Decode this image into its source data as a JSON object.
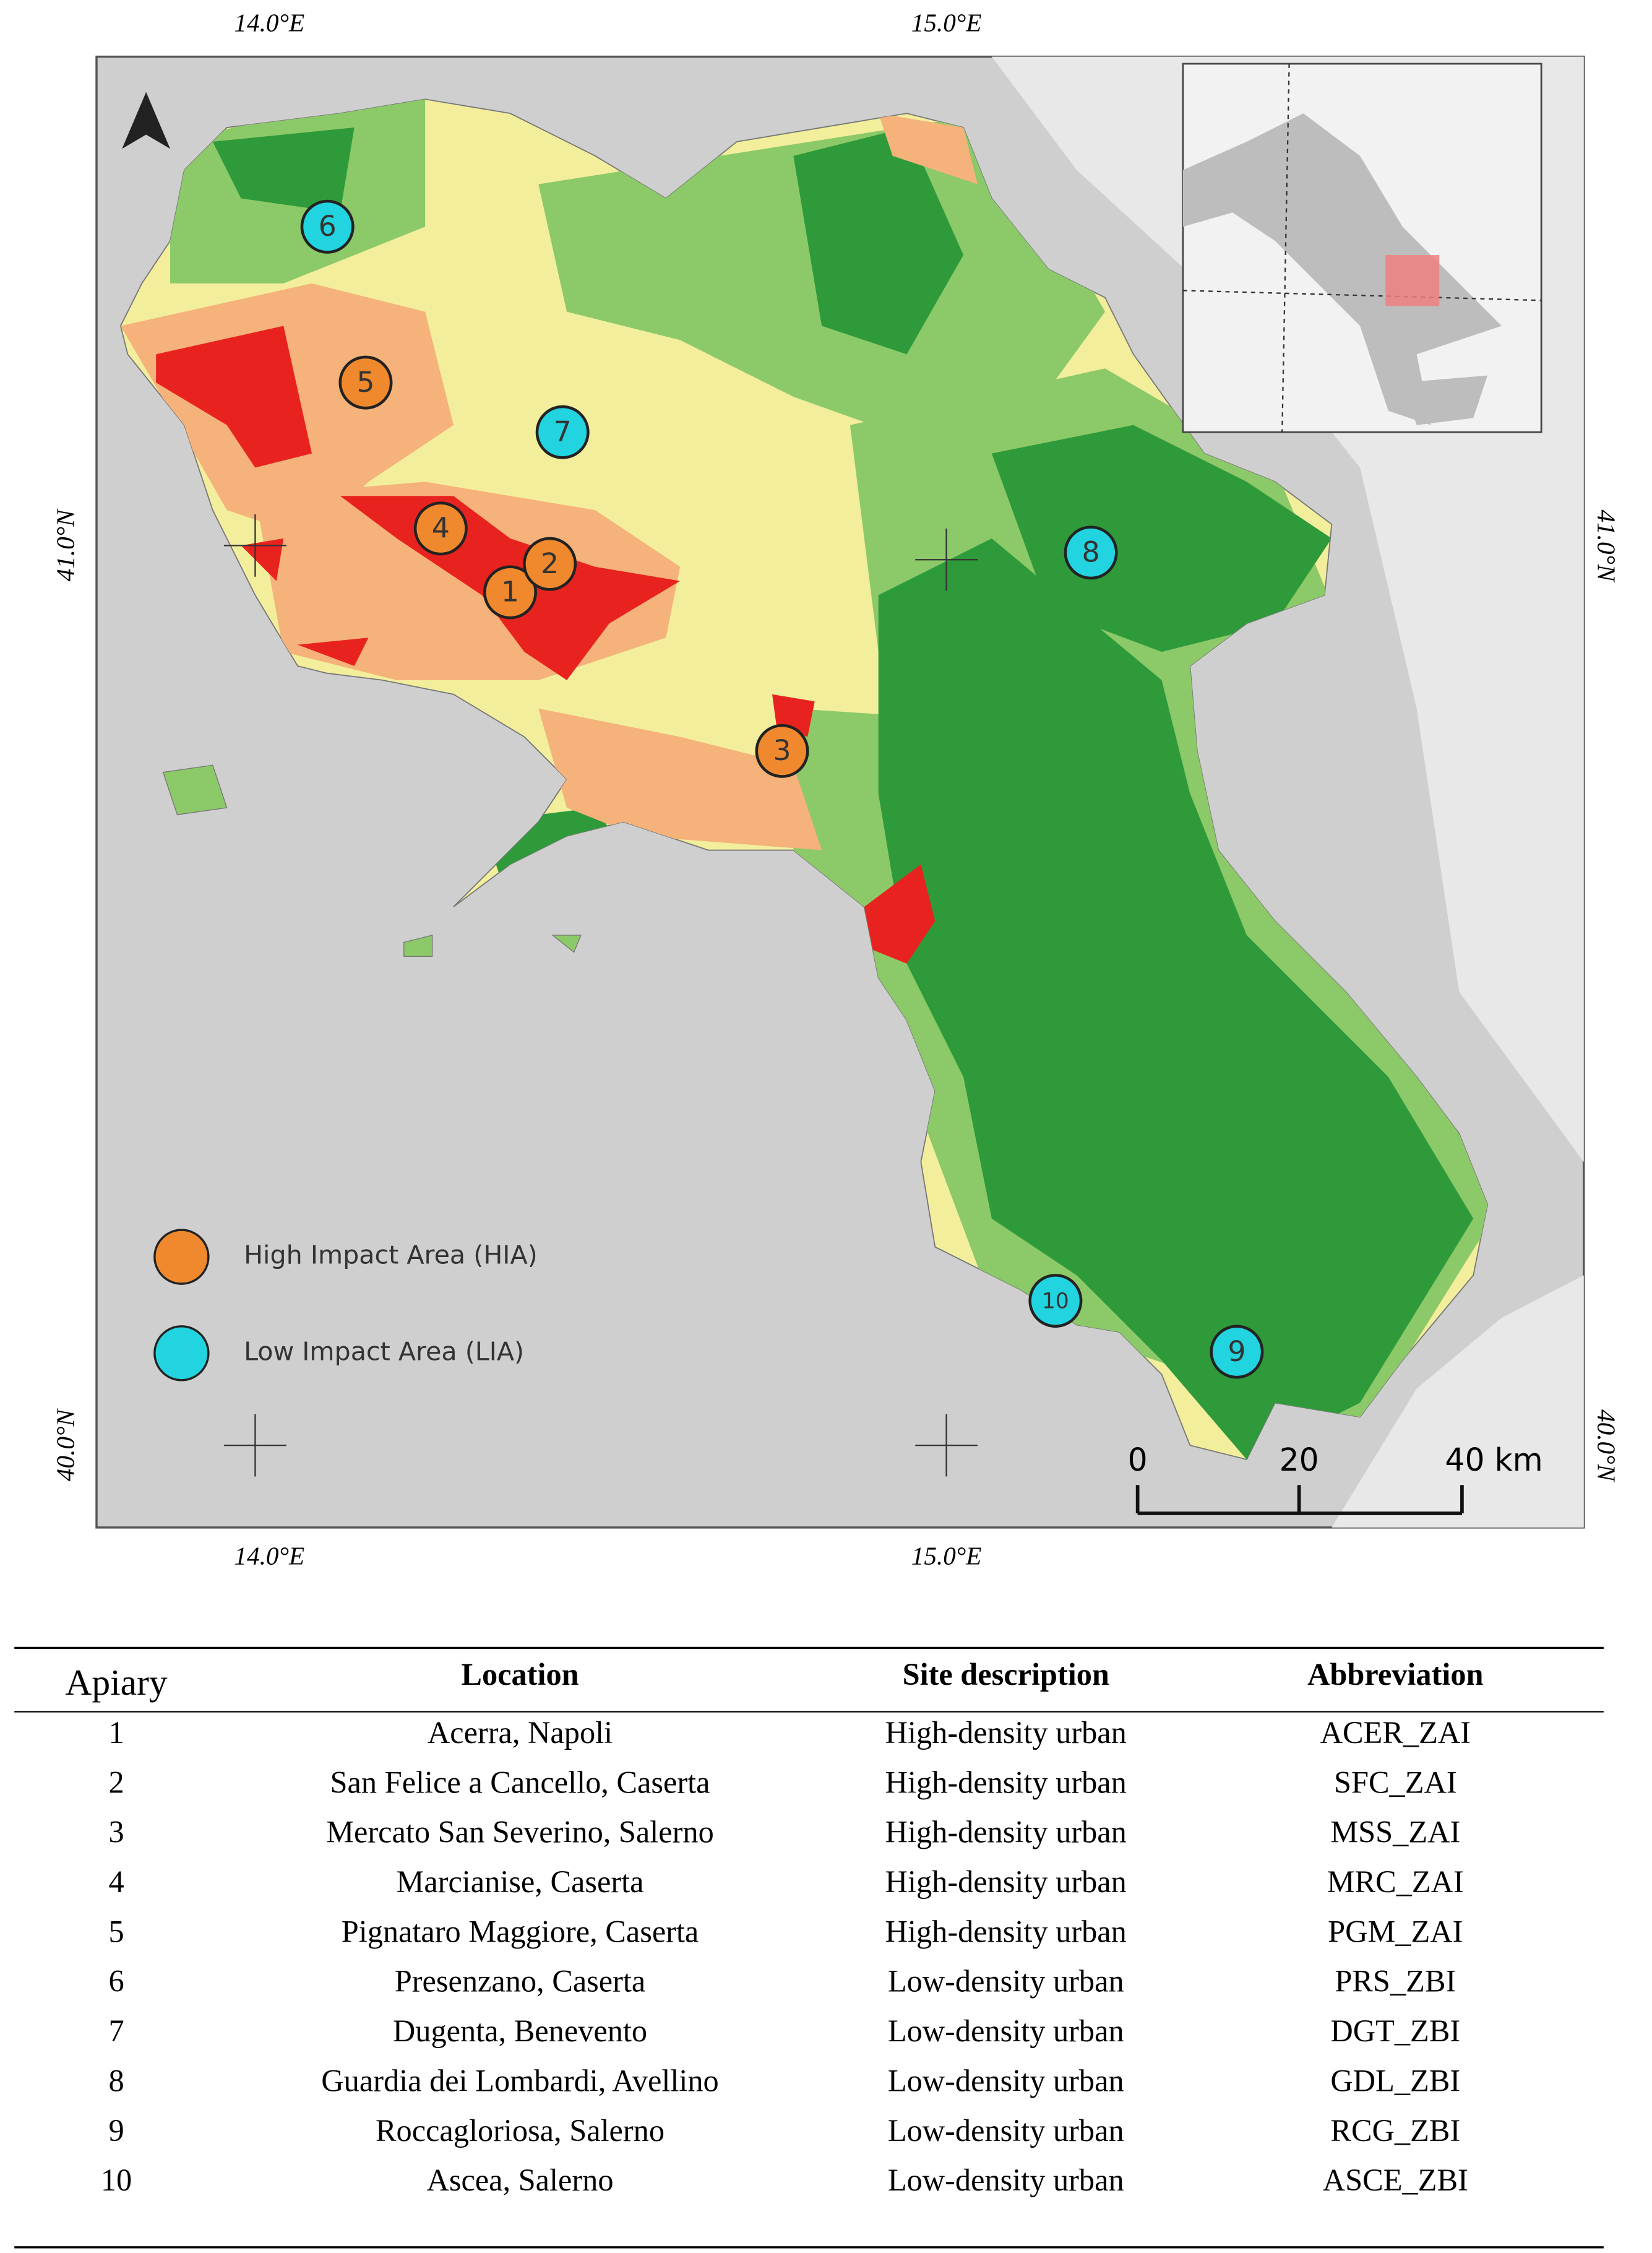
{
  "map": {
    "lon_labels": [
      "14.0°E",
      "15.0°E"
    ],
    "lat_labels": [
      "41.0°N",
      "40.0°N"
    ],
    "sites": [
      {
        "label": "1",
        "color": "#f0892e"
      },
      {
        "label": "2",
        "color": "#f0892e"
      },
      {
        "label": "3",
        "color": "#f0892e"
      },
      {
        "label": "4",
        "color": "#f0892e"
      },
      {
        "label": "5",
        "color": "#f0892e"
      },
      {
        "label": "6",
        "color": "#22d3e0"
      },
      {
        "label": "7",
        "color": "#22d3e0"
      },
      {
        "label": "8",
        "color": "#22d3e0"
      },
      {
        "label": "9",
        "color": "#22d3e0"
      },
      {
        "label": "10",
        "color": "#22d3e0"
      }
    ],
    "legend": [
      {
        "label": "High Impact Area (HIA)",
        "color": "#f0892e"
      },
      {
        "label": "Low Impact Area (LIA)",
        "color": "#22d3e0"
      }
    ],
    "scale_bar": [
      "0",
      "20",
      "40 km"
    ]
  },
  "table": {
    "header": [
      "Apiary",
      "Location",
      "Site description",
      "Abbreviation"
    ],
    "rows": [
      [
        "1",
        "Acerra, Napoli",
        "High-density urban",
        "ACER_ZAI"
      ],
      [
        "2",
        "San Felice a Cancello, Caserta",
        "High-density urban",
        "SFC_ZAI"
      ],
      [
        "3",
        "Mercato San Severino, Salerno",
        "High-density urban",
        "MSS_ZAI"
      ],
      [
        "4",
        "Marcianise, Caserta",
        "High-density urban",
        "MRC_ZAI"
      ],
      [
        "5",
        "Pignataro Maggiore, Caserta",
        "High-density urban",
        "PGM_ZAI"
      ],
      [
        "6",
        "Presenzano, Caserta",
        "Low-density urban",
        "PRS_ZBI"
      ],
      [
        "7",
        "Dugenta, Benevento",
        "Low-density urban",
        "DGT_ZBI"
      ],
      [
        "8",
        "Guardia dei Lombardi, Avellino",
        "Low-density urban",
        "GDL_ZBI"
      ],
      [
        "9",
        "Roccagloriosa, Salerno",
        "Low-density urban",
        "RCG_ZBI"
      ],
      [
        "10",
        "Ascea, Salerno",
        "Low-density urban",
        "ASCE_ZBI"
      ]
    ]
  }
}
